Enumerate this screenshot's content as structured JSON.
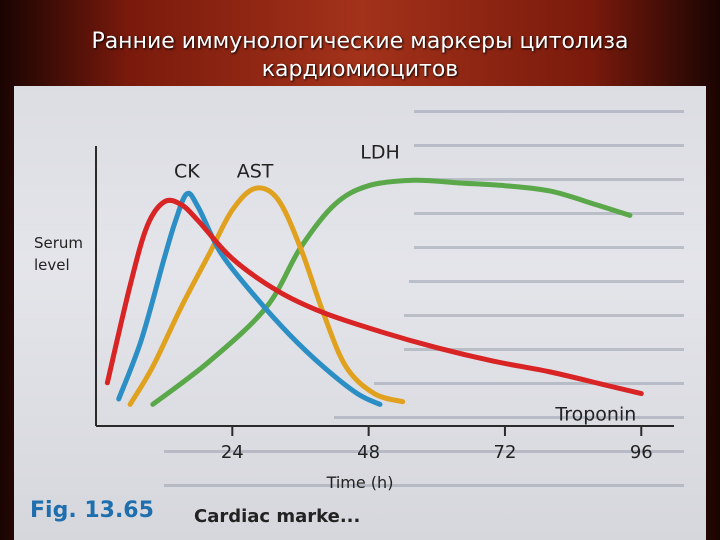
{
  "slide": {
    "title": "Ранние иммунологические маркеры цитолиза кардиомиоцитов"
  },
  "figure": {
    "caption": "Fig. 13.65",
    "caption_sub": "Cardiac marke..."
  },
  "colors": {
    "ck": "#2b8ec4",
    "ast": "#e0a11f",
    "ldh": "#5aa84a",
    "troponin": "#d82424",
    "axis": "#2a2a2a"
  },
  "chart_data": {
    "type": "line",
    "title": "",
    "xlabel": "Time (h)",
    "ylabel": "Serum level",
    "xlim": [
      0,
      100
    ],
    "ylim": [
      0,
      100
    ],
    "x_ticks": [
      24,
      48,
      72,
      96
    ],
    "x_tick_labels": [
      "24",
      "48",
      "72",
      "96"
    ],
    "grid": false,
    "series": [
      {
        "name": "CK",
        "color": "#2b8ec4",
        "points": [
          [
            4,
            10
          ],
          [
            8,
            32
          ],
          [
            12,
            62
          ],
          [
            14,
            76
          ],
          [
            16,
            86
          ],
          [
            18,
            81
          ],
          [
            22,
            64
          ],
          [
            28,
            48
          ],
          [
            34,
            34
          ],
          [
            40,
            22
          ],
          [
            46,
            12
          ],
          [
            50,
            8
          ]
        ]
      },
      {
        "name": "AST",
        "color": "#e0a11f",
        "points": [
          [
            6,
            8
          ],
          [
            10,
            22
          ],
          [
            15,
            44
          ],
          [
            20,
            64
          ],
          [
            24,
            80
          ],
          [
            28,
            88
          ],
          [
            32,
            84
          ],
          [
            36,
            66
          ],
          [
            40,
            42
          ],
          [
            44,
            22
          ],
          [
            49,
            12
          ],
          [
            54,
            9
          ]
        ]
      },
      {
        "name": "LDH",
        "color": "#5aa84a",
        "points": [
          [
            10,
            8
          ],
          [
            20,
            24
          ],
          [
            30,
            44
          ],
          [
            36,
            66
          ],
          [
            42,
            82
          ],
          [
            48,
            89
          ],
          [
            56,
            91
          ],
          [
            64,
            90
          ],
          [
            72,
            89
          ],
          [
            80,
            87
          ],
          [
            88,
            82
          ],
          [
            94,
            78
          ]
        ]
      },
      {
        "name": "Troponin",
        "color": "#d82424",
        "points": [
          [
            2,
            16
          ],
          [
            6,
            52
          ],
          [
            9,
            74
          ],
          [
            12,
            83
          ],
          [
            15,
            82
          ],
          [
            18,
            76
          ],
          [
            24,
            62
          ],
          [
            32,
            50
          ],
          [
            40,
            42
          ],
          [
            50,
            35
          ],
          [
            60,
            29
          ],
          [
            70,
            24
          ],
          [
            80,
            20
          ],
          [
            90,
            15
          ],
          [
            96,
            12
          ]
        ]
      }
    ],
    "annotations": [
      "CK",
      "AST",
      "LDH",
      "Troponin"
    ]
  }
}
